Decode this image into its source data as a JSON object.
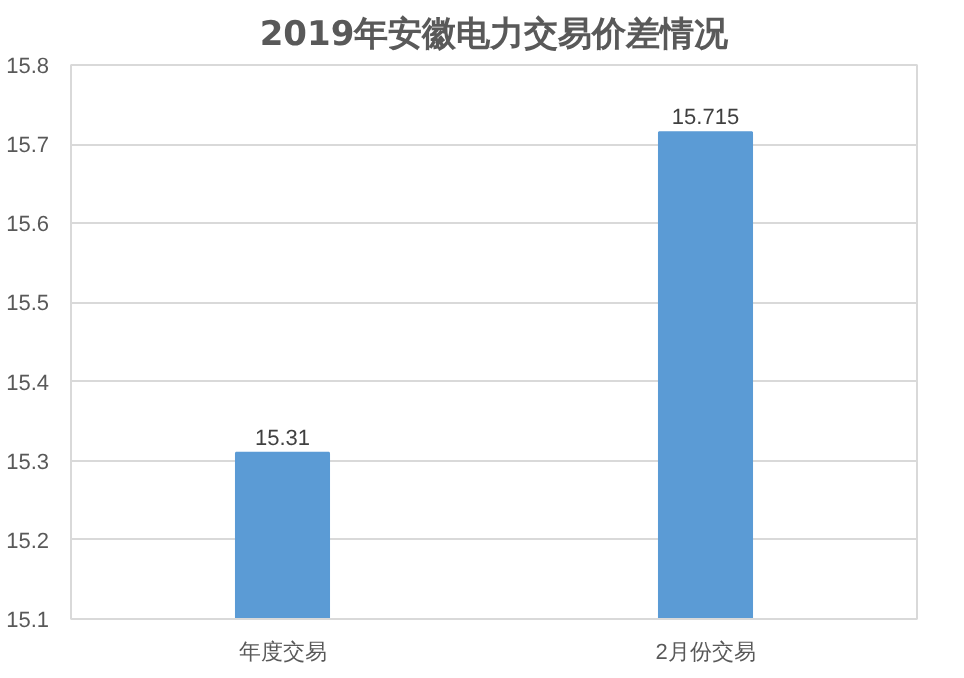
{
  "chart_data": {
    "type": "bar",
    "title": "2019年安徽电力交易价差情况",
    "categories": [
      "年度交易",
      "2月份交易"
    ],
    "values": [
      15.31,
      15.715
    ],
    "color": "#5b9bd5",
    "ylim": [
      15.1,
      15.8
    ],
    "yticks": [
      15.1,
      15.2,
      15.3,
      15.4,
      15.5,
      15.6,
      15.7,
      15.8
    ],
    "grid": "y",
    "data_labels": true
  }
}
